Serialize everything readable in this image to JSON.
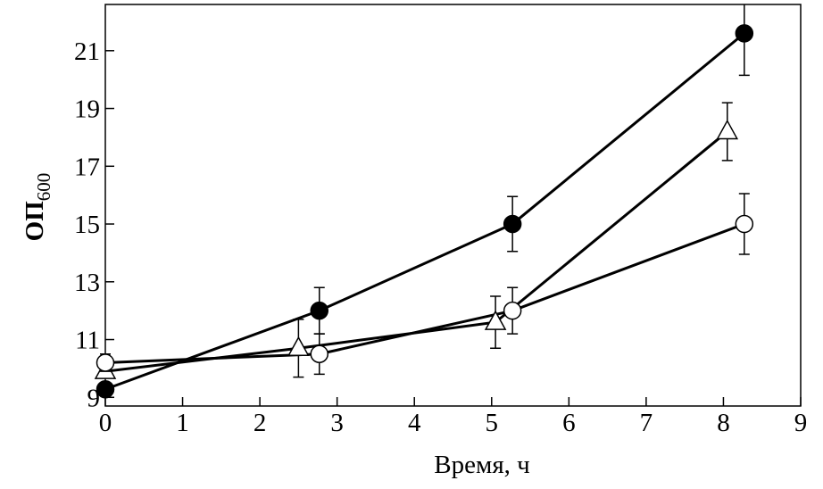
{
  "chart_data": {
    "type": "line",
    "xlabel": "Время, ч",
    "ylabel": "ОП",
    "ylabel_sub": "600",
    "xlim": [
      0,
      9
    ],
    "xticks": [
      0,
      1,
      2,
      3,
      4,
      5,
      6,
      7,
      8,
      9
    ],
    "ylim": [
      8.7,
      22.6
    ],
    "yticks": [
      9,
      11,
      13,
      15,
      17,
      19,
      21
    ],
    "series": [
      {
        "marker": "circle",
        "filled": true,
        "color": "#000000",
        "x": [
          0,
          2.77,
          5.27,
          8.27
        ],
        "values": [
          9.28,
          12.0,
          15.0,
          21.6
        ],
        "errors": [
          null,
          0.8,
          0.95,
          1.45
        ]
      },
      {
        "marker": "triangle",
        "filled": false,
        "color": "#000000",
        "x": [
          0,
          2.5,
          5.05,
          8.05
        ],
        "values": [
          9.9,
          10.7,
          11.6,
          18.2
        ],
        "errors": [
          null,
          1.0,
          0.9,
          1.0
        ]
      },
      {
        "marker": "circle",
        "filled": false,
        "color": "#000000",
        "x": [
          0,
          2.77,
          5.27,
          8.27
        ],
        "values": [
          10.2,
          10.5,
          12.0,
          15.0
        ],
        "errors": [
          0.3,
          0.7,
          0.8,
          1.05
        ]
      }
    ]
  }
}
